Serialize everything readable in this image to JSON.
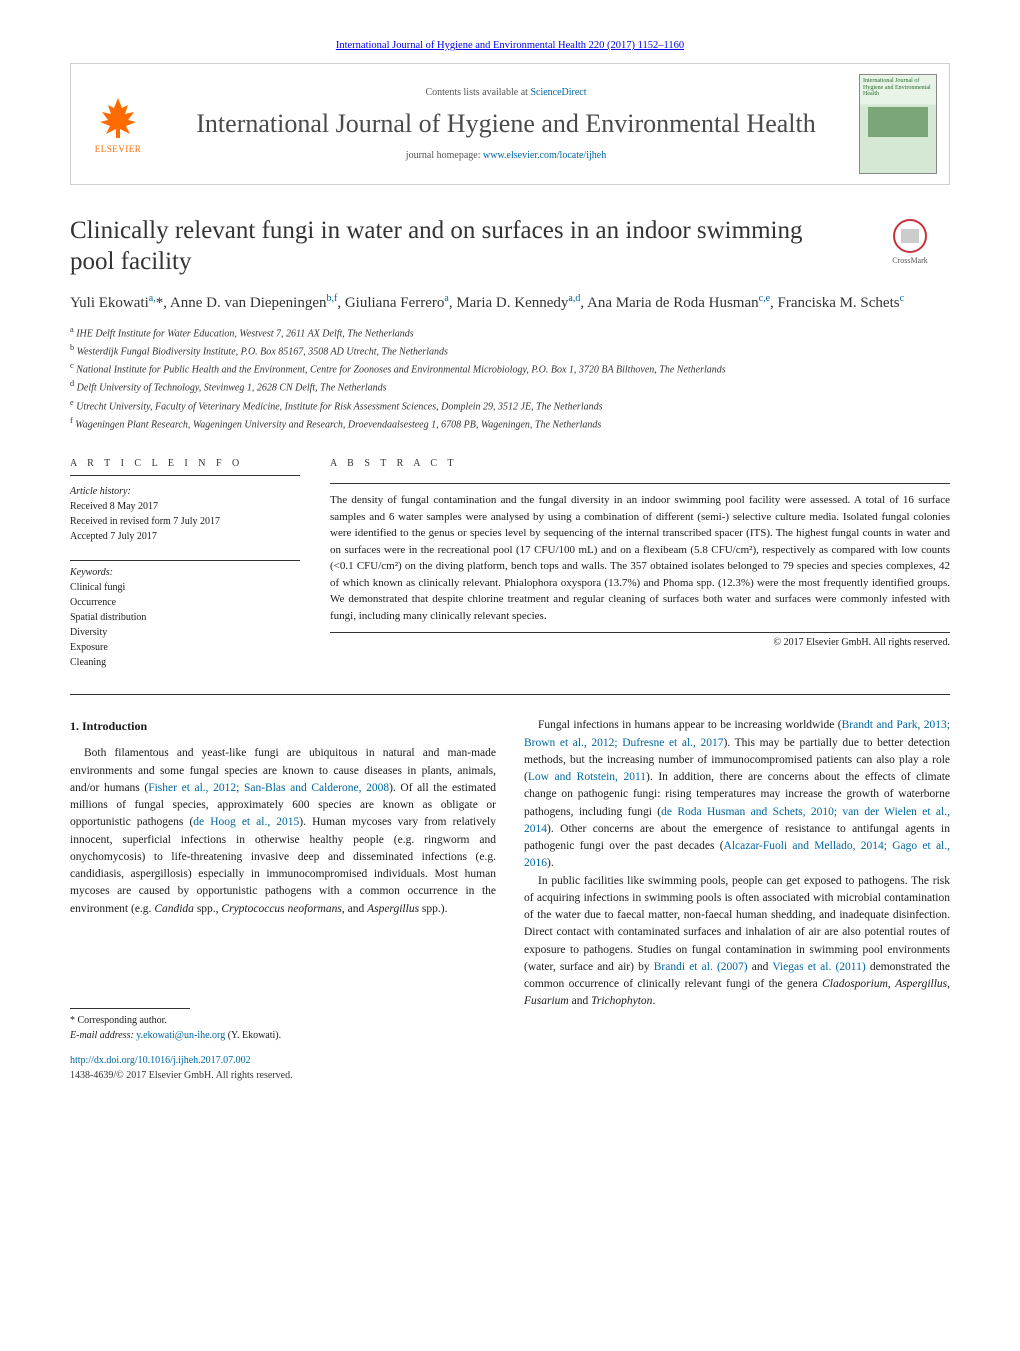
{
  "header": {
    "citation": "International Journal of Hygiene and Environmental Health 220 (2017) 1152–1160",
    "contents_prefix": "Contents lists available at ",
    "contents_link": "ScienceDirect",
    "journal_title": "International Journal of Hygiene and Environmental Health",
    "homepage_prefix": "journal homepage: ",
    "homepage_link": "www.elsevier.com/locate/ijheh",
    "elsevier_label": "ELSEVIER",
    "cover_title": "International Journal of Hygiene and Environmental Health",
    "crossmark_label": "CrossMark"
  },
  "article": {
    "title": "Clinically relevant fungi in water and on surfaces in an indoor swimming pool facility",
    "authors_html": "Yuli Ekowati<sup class=\"sup-link\">a,</sup>*, Anne D. van Diepeningen<sup class=\"sup-link\">b,f</sup>, Giuliana Ferrero<sup class=\"sup-link\">a</sup>, Maria D. Kennedy<sup class=\"sup-link\">a,d</sup>, Ana Maria de Roda Husman<sup class=\"sup-link\">c,e</sup>, Franciska M. Schets<sup class=\"sup-link\">c</sup>",
    "affiliations": [
      {
        "sup": "a",
        "text": "IHE Delft Institute for Water Education, Westvest 7, 2611 AX Delft, The Netherlands"
      },
      {
        "sup": "b",
        "text": "Westerdijk Fungal Biodiversity Institute, P.O. Box 85167, 3508 AD Utrecht, The Netherlands"
      },
      {
        "sup": "c",
        "text": "National Institute for Public Health and the Environment, Centre for Zoonoses and Environmental Microbiology, P.O. Box 1, 3720 BA Bilthoven, The Netherlands"
      },
      {
        "sup": "d",
        "text": "Delft University of Technology, Stevinweg 1, 2628 CN Delft, The Netherlands"
      },
      {
        "sup": "e",
        "text": "Utrecht University, Faculty of Veterinary Medicine, Institute for Risk Assessment Sciences, Domplein 29, 3512 JE, The Netherlands"
      },
      {
        "sup": "f",
        "text": "Wageningen Plant Research, Wageningen University and Research, Droevendaalsesteeg 1, 6708 PB, Wageningen, The Netherlands"
      }
    ]
  },
  "info": {
    "article_info_label": "a r t i c l e   i n f o",
    "abstract_label": "a b s t r a c t",
    "history_label": "Article history:",
    "history": [
      "Received 8 May 2017",
      "Received in revised form 7 July 2017",
      "Accepted 7 July 2017"
    ],
    "keywords_label": "Keywords:",
    "keywords": [
      "Clinical fungi",
      "Occurrence",
      "Spatial distribution",
      "Diversity",
      "Exposure",
      "Cleaning"
    ],
    "abstract": "The density of fungal contamination and the fungal diversity in an indoor swimming pool facility were assessed. A total of 16 surface samples and 6 water samples were analysed by using a combination of different (semi-) selective culture media. Isolated fungal colonies were identified to the genus or species level by sequencing of the internal transcribed spacer (ITS). The highest fungal counts in water and on surfaces were in the recreational pool (17 CFU/100 mL) and on a flexibeam (5.8 CFU/cm²), respectively as compared with low counts (<0.1 CFU/cm²) on the diving platform, bench tops and walls. The 357 obtained isolates belonged to 79 species and species complexes, 42 of which known as clinically relevant. Phialophora oxyspora (13.7%) and Phoma spp. (12.3%) were the most frequently identified groups. We demonstrated that despite chlorine treatment and regular cleaning of surfaces both water and surfaces were commonly infested with fungi, including many clinically relevant species.",
    "copyright": "© 2017 Elsevier GmbH. All rights reserved."
  },
  "body": {
    "intro_heading": "1. Introduction",
    "para1_html": "Both filamentous and yeast-like fungi are ubiquitous in natural and man-made environments and some fungal species are known to cause diseases in plants, animals, and/or humans (<a class=\"cit\" href=\"#\">Fisher et al., 2012; San-Blas and Calderone, 2008</a>). Of all the estimated millions of fungal species, approximately 600 species are known as obligate or opportunistic pathogens (<a class=\"cit\" href=\"#\">de Hoog et al., 2015</a>). Human mycoses vary from relatively innocent, superficial infections in otherwise healthy people (e.g. ringworm and onychomycosis) to life-threatening invasive deep and disseminated infections (e.g. candidiasis, aspergillosis) especially in immunocompromised individuals. Most human mycoses are caused by opportunistic pathogens with a common occurrence in the environment (e.g. <em>Candida</em> spp., <em>Cryptococcus neoformans</em>, and <em>Aspergillus</em> spp.).",
    "para2_html": "Fungal infections in humans appear to be increasing worldwide (<a class=\"cit\" href=\"#\">Brandt and Park, 2013; Brown et al., 2012; Dufresne et al., 2017</a>). This may be partially due to better detection methods, but the increasing number of immunocompromised patients can also play a role (<a class=\"cit\" href=\"#\">Low and Rotstein, 2011</a>). In addition, there are concerns about the effects of climate change on pathogenic fungi: rising temperatures may increase the growth of waterborne pathogens, including fungi (<a class=\"cit\" href=\"#\">de Roda Husman and Schets, 2010; van der Wielen et al., 2014</a>). Other concerns are about the emergence of resistance to antifungal agents in pathogenic fungi over the past decades (<a class=\"cit\" href=\"#\">Alcazar-Fuoli and Mellado, 2014; Gago et al., 2016</a>).",
    "para3_html": "In public facilities like swimming pools, people can get exposed to pathogens. The risk of acquiring infections in swimming pools is often associated with microbial contamination of the water due to faecal matter, non-faecal human shedding, and inadequate disinfection. Direct contact with contaminated surfaces and inhalation of air are also potential routes of exposure to pathogens. Studies on fungal contamination in swimming pool environments (water, surface and air) by <a class=\"cit\" href=\"#\">Brandi et al. (2007)</a> and <a class=\"cit\" href=\"#\">Viegas et al. (2011)</a> demonstrated the common occurrence of clinically relevant fungi of the genera <em>Cladosporium</em>, <em>Aspergillus</em>, <em>Fusarium</em> and <em>Trichophyton</em>."
  },
  "footer": {
    "corr_label": "* Corresponding author.",
    "email_label": "E-mail address: ",
    "email": "y.ekowati@un-ihe.org",
    "email_name": " (Y. Ekowati).",
    "doi": "http://dx.doi.org/10.1016/j.ijheh.2017.07.002",
    "issn": "1438-4639/© 2017 Elsevier GmbH. All rights reserved."
  },
  "colors": {
    "link": "#0066a1",
    "elsevier": "#ff6b00",
    "text": "#1a1a1a",
    "rule": "#333333"
  },
  "typography": {
    "body_pt": 11.5,
    "title_pt": 25,
    "journal_title_pt": 26,
    "small_pt": 10
  }
}
